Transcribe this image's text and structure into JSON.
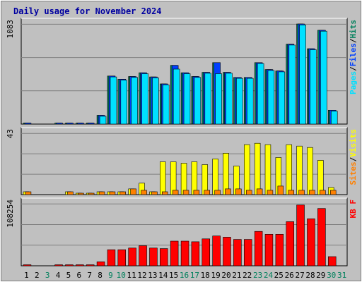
{
  "chart_data": [
    {
      "type": "bar",
      "panel": "pages-files-hits",
      "title": "Daily usage for November 2024",
      "ylabel_max": "1083",
      "legend": [
        "Pages",
        "/",
        "Files",
        "/",
        "Hits"
      ],
      "ylim": [
        0,
        1083
      ],
      "categories": [
        "1",
        "2",
        "3",
        "4",
        "5",
        "6",
        "7",
        "8",
        "9",
        "10",
        "11",
        "12",
        "13",
        "14",
        "15",
        "16",
        "17",
        "18",
        "19",
        "20",
        "21",
        "22",
        "23",
        "24",
        "25",
        "26",
        "27",
        "28",
        "29",
        "30",
        "31"
      ],
      "series": [
        {
          "name": "Hits",
          "values": [
            10,
            0,
            0,
            10,
            10,
            10,
            10,
            95,
            520,
            485,
            515,
            555,
            510,
            435,
            635,
            555,
            515,
            560,
            665,
            560,
            505,
            505,
            665,
            590,
            575,
            865,
            1083,
            815,
            1015,
            150,
            0
          ]
        },
        {
          "name": "Files",
          "values": [
            10,
            0,
            0,
            10,
            10,
            10,
            10,
            95,
            520,
            485,
            515,
            555,
            510,
            435,
            635,
            555,
            515,
            560,
            665,
            560,
            505,
            505,
            665,
            590,
            575,
            865,
            1083,
            815,
            1015,
            150,
            0
          ]
        },
        {
          "name": "Pages",
          "values": [
            0,
            0,
            0,
            0,
            0,
            0,
            0,
            85,
            510,
            475,
            505,
            545,
            500,
            425,
            595,
            545,
            505,
            550,
            545,
            550,
            495,
            495,
            655,
            580,
            565,
            855,
            1073,
            805,
            1005,
            140,
            0
          ]
        }
      ]
    },
    {
      "type": "bar",
      "panel": "sites-visits",
      "ylabel_max": "43",
      "legend": [
        "Sites",
        "/",
        "Visits"
      ],
      "ylim": [
        0,
        43
      ],
      "categories": [
        "1",
        "2",
        "3",
        "4",
        "5",
        "6",
        "7",
        "8",
        "9",
        "10",
        "11",
        "12",
        "13",
        "14",
        "15",
        "16",
        "17",
        "18",
        "19",
        "20",
        "21",
        "22",
        "23",
        "24",
        "25",
        "26",
        "27",
        "28",
        "29",
        "30",
        "31"
      ],
      "series": [
        {
          "name": "Visits",
          "values": [
            2,
            0,
            0,
            0,
            2,
            1,
            1,
            2,
            2,
            2,
            4,
            8,
            2,
            23,
            23,
            22,
            23,
            21,
            25,
            29,
            20,
            35,
            36,
            35,
            26,
            35,
            34,
            33,
            24,
            5,
            0
          ]
        },
        {
          "name": "Sites",
          "values": [
            2,
            0,
            0,
            0,
            2,
            1,
            1,
            2,
            2,
            2,
            4,
            3,
            2,
            2,
            3,
            3,
            3,
            3,
            3,
            4,
            4,
            3,
            4,
            3,
            6,
            3,
            3,
            3,
            3,
            3,
            0
          ]
        }
      ]
    },
    {
      "type": "bar",
      "panel": "kbytes",
      "ylabel_max": "108254",
      "legend": [
        "KB F"
      ],
      "ylim": [
        0,
        108254
      ],
      "categories": [
        "1",
        "2",
        "3",
        "4",
        "5",
        "6",
        "7",
        "8",
        "9",
        "10",
        "11",
        "12",
        "13",
        "14",
        "15",
        "16",
        "17",
        "18",
        "19",
        "20",
        "21",
        "22",
        "23",
        "24",
        "25",
        "26",
        "27",
        "28",
        "29",
        "30",
        "31"
      ],
      "series": [
        {
          "name": "KB F",
          "values": [
            1500,
            0,
            0,
            1500,
            1500,
            1500,
            1500,
            7000,
            28000,
            28000,
            31000,
            35000,
            31000,
            30000,
            43000,
            43000,
            42000,
            47000,
            52000,
            50000,
            46000,
            46000,
            60000,
            55000,
            55000,
            77000,
            106000,
            82000,
            100000,
            16000,
            0
          ]
        }
      ]
    }
  ],
  "x_labels": [
    {
      "text": "1",
      "color": "#000000"
    },
    {
      "text": "2",
      "color": "#000000"
    },
    {
      "text": "3",
      "color": "#00805c"
    },
    {
      "text": "4",
      "color": "#000000"
    },
    {
      "text": "5",
      "color": "#000000"
    },
    {
      "text": "6",
      "color": "#000000"
    },
    {
      "text": "7",
      "color": "#000000"
    },
    {
      "text": "8",
      "color": "#000000"
    },
    {
      "text": "9",
      "color": "#00805c"
    },
    {
      "text": "10",
      "color": "#00805c"
    },
    {
      "text": "11",
      "color": "#000000"
    },
    {
      "text": "12",
      "color": "#000000"
    },
    {
      "text": "13",
      "color": "#000000"
    },
    {
      "text": "14",
      "color": "#000000"
    },
    {
      "text": "15",
      "color": "#000000"
    },
    {
      "text": "16",
      "color": "#00805c"
    },
    {
      "text": "17",
      "color": "#00805c"
    },
    {
      "text": "18",
      "color": "#000000"
    },
    {
      "text": "19",
      "color": "#000000"
    },
    {
      "text": "20",
      "color": "#000000"
    },
    {
      "text": "21",
      "color": "#000000"
    },
    {
      "text": "22",
      "color": "#000000"
    },
    {
      "text": "23",
      "color": "#00805c"
    },
    {
      "text": "24",
      "color": "#00805c"
    },
    {
      "text": "25",
      "color": "#000000"
    },
    {
      "text": "26",
      "color": "#000000"
    },
    {
      "text": "27",
      "color": "#000000"
    },
    {
      "text": "28",
      "color": "#000000"
    },
    {
      "text": "29",
      "color": "#000000"
    },
    {
      "text": "30",
      "color": "#00805c"
    },
    {
      "text": "31",
      "color": "#00805c"
    }
  ],
  "colors": {
    "background": "#c0c0c0",
    "plot_bg": "#c0c0c0",
    "title": "#0000a0",
    "hits": "#00805c",
    "files": "#0040ff",
    "pages": "#00e0ff",
    "visits": "#ffff00",
    "sites": "#ff8000",
    "kbytes": "#ff0000",
    "grid": "#808080"
  }
}
